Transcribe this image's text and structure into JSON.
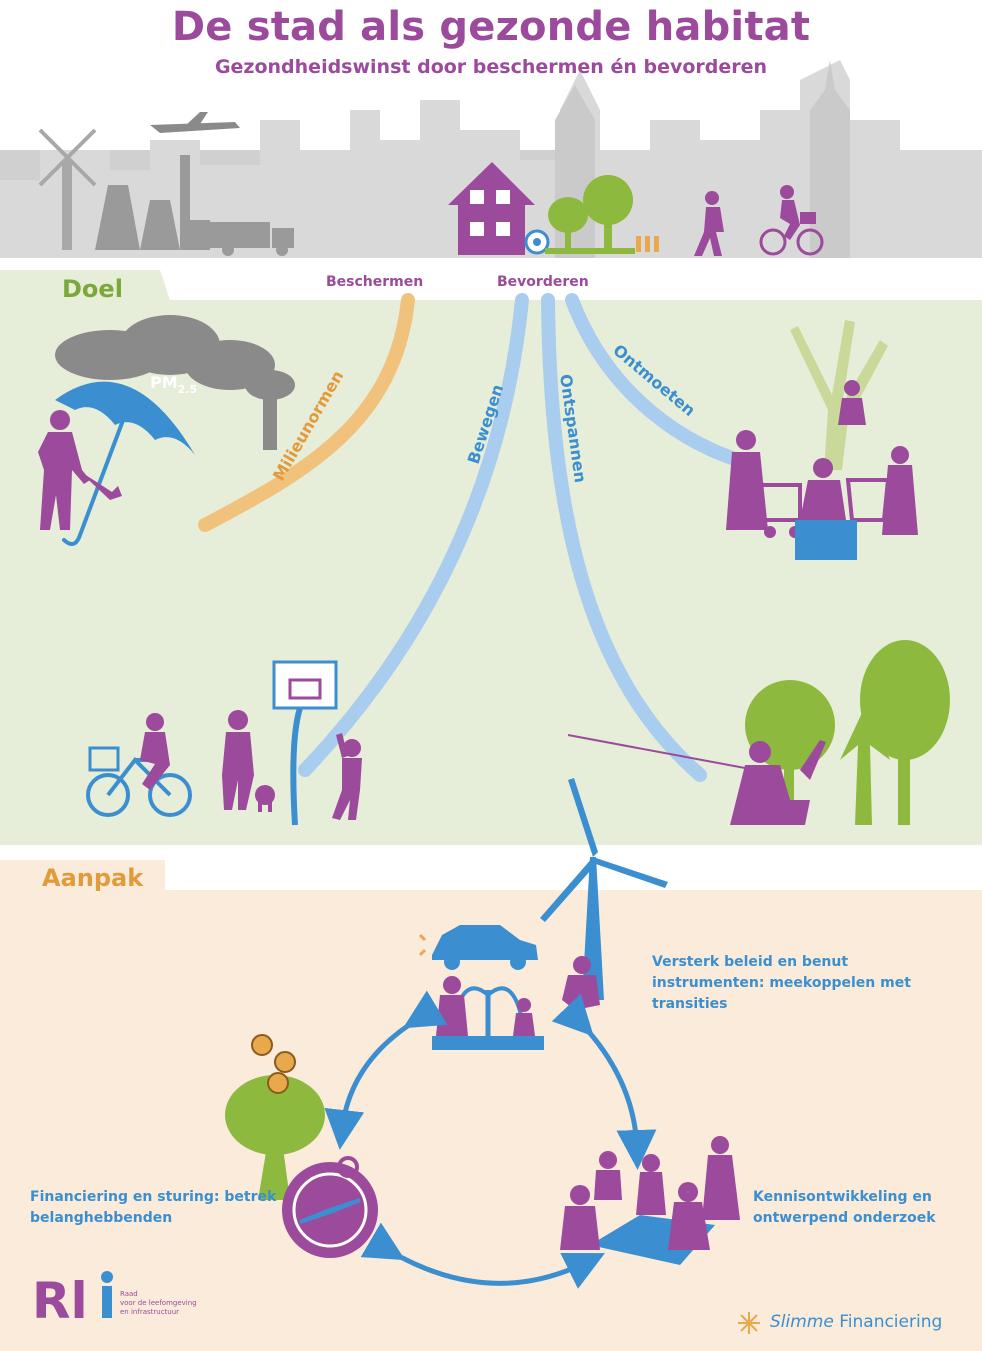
{
  "title": "De stad als gezonde habitat",
  "subtitle": "Gezondheidswinst door beschermen én bevorderen",
  "sections": {
    "goal_label": "Doel",
    "approach_label": "Aanpak"
  },
  "branches": {
    "protect_label": "Beschermen",
    "promote_label": "Bevorderen",
    "streams": [
      "Milieunormen",
      "Bewegen",
      "Ontspannen",
      "Ontmoeten"
    ]
  },
  "pollution_label": "PM",
  "pollution_subscript": "2.5",
  "actions": [
    "Versterk beleid en benut instrumenten: meekoppelen met transities",
    "Kennisontwikkeling en ontwerpend onderzoek",
    "Financiering en sturing: betrek belanghebbenden"
  ],
  "logos": {
    "rli_text": "Rli",
    "rli_tagline_1": "Raad",
    "rli_tagline_2": "voor de leefomgeving",
    "rli_tagline_3": "en infrastructuur",
    "sf_text_italic": "Slimme",
    "sf_text_regular": "Financiering"
  },
  "colors": {
    "purple": "#9b4a9c",
    "blue": "#3b8fd0",
    "light_blue": "#a9cdee",
    "green": "#8dba3e",
    "orange": "#e8a94d",
    "grey": "#b9b9b9",
    "goal_bg": "#e6edd9",
    "approach_bg": "#faebda"
  },
  "icons": [
    "plane-icon",
    "windmill-icon",
    "factory-icon",
    "truck-icon",
    "house-icon",
    "tree-icon",
    "football-icon",
    "pedestrian-icon",
    "cyclist-icon",
    "umbrella-icon",
    "basketball-hoop-icon",
    "wind-turbine-icon",
    "electric-car-icon",
    "fountain-icon",
    "compass-icon",
    "euro-coin-icon"
  ]
}
